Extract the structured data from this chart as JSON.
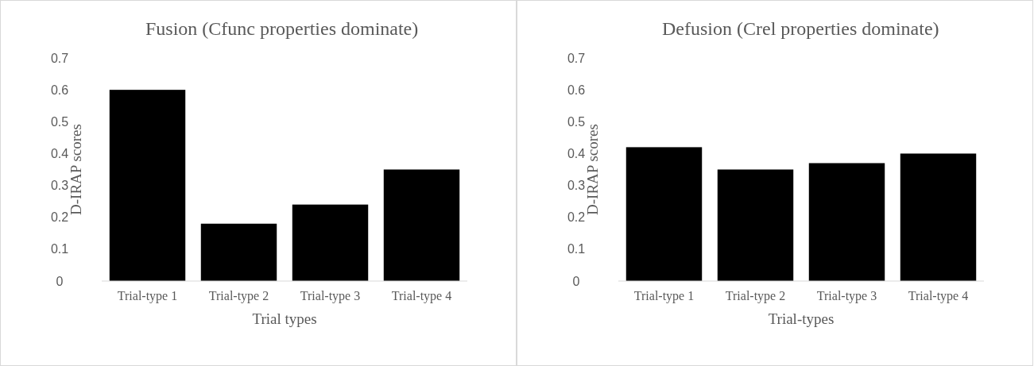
{
  "chart_data": [
    {
      "type": "bar",
      "title": "Fusion (Cfunc properties dominate)",
      "xlabel": "Trial types",
      "ylabel": "D-IRAP scores",
      "categories": [
        "Trial-type 1",
        "Trial-type 2",
        "Trial-type 3",
        "Trial-type 4"
      ],
      "values": [
        0.6,
        0.18,
        0.24,
        0.35
      ],
      "color": "#000000",
      "ylim": [
        0,
        0.7
      ],
      "yticks": [
        0,
        0.1,
        0.2,
        0.3,
        0.4,
        0.5,
        0.6,
        0.7
      ],
      "grid": false
    },
    {
      "type": "bar",
      "title": "Defusion (Crel properties dominate)",
      "xlabel": "Trial-types",
      "ylabel": "D-IRAP scores",
      "categories": [
        "Trial-type 1",
        "Trial-type 2",
        "Trial-type 3",
        "Trial-type 4"
      ],
      "values": [
        0.42,
        0.35,
        0.37,
        0.4
      ],
      "color": "#000000",
      "ylim": [
        0,
        0.7
      ],
      "yticks": [
        0,
        0.1,
        0.2,
        0.3,
        0.4,
        0.5,
        0.6,
        0.7
      ],
      "grid": false
    }
  ]
}
